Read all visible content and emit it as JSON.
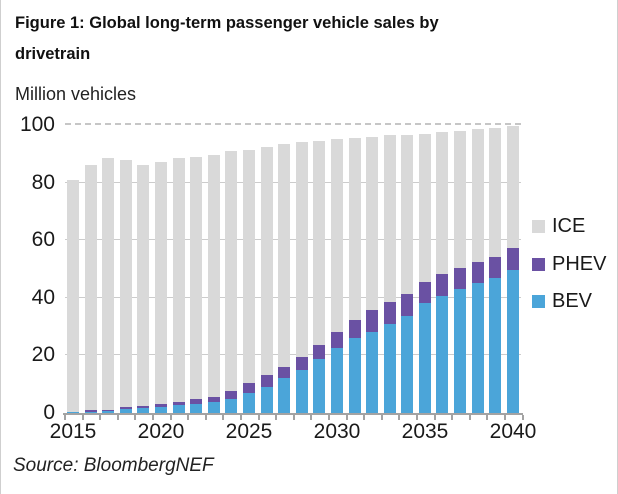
{
  "figure": {
    "title": "Figure 1: Global long-term passenger vehicle sales by drivetrain",
    "y_axis_title": "Million vehicles",
    "source": "Source: BloombergNEF"
  },
  "legend": [
    {
      "name": "ICE",
      "label": "ICE",
      "color": "#d9d9d9"
    },
    {
      "name": "PHEV",
      "label": "PHEV",
      "color": "#6a51a3"
    },
    {
      "name": "BEV",
      "label": "BEV",
      "color": "#4ba5d9"
    }
  ],
  "chart_data": {
    "type": "bar",
    "stacked": true,
    "title": "Figure 1: Global long-term passenger vehicle sales by drivetrain",
    "ylabel": "Million vehicles",
    "ylim": [
      0,
      100
    ],
    "y_ticks": [
      0,
      20,
      40,
      60,
      80,
      100
    ],
    "grid": "horizontal; line at 100 dashed, others light solid behind bars",
    "legend_position": "right",
    "categories": [
      2015,
      2016,
      2017,
      2018,
      2019,
      2020,
      2021,
      2022,
      2023,
      2024,
      2025,
      2026,
      2027,
      2028,
      2029,
      2030,
      2031,
      2032,
      2033,
      2034,
      2035,
      2036,
      2037,
      2038,
      2039,
      2040
    ],
    "x_tick_labels": [
      "2015",
      "2020",
      "2025",
      "2030",
      "2035",
      "2040"
    ],
    "x_labeled_indices": [
      0,
      5,
      10,
      15,
      20,
      25
    ],
    "series": [
      {
        "name": "BEV",
        "color": "#4ba5d9",
        "values": [
          0.2,
          0.5,
          0.8,
          1.4,
          1.7,
          2.2,
          2.7,
          3.2,
          3.9,
          5.0,
          7.0,
          9.2,
          12.2,
          15.1,
          18.6,
          22.5,
          26.0,
          28.3,
          31.0,
          33.6,
          38.2,
          40.8,
          43.2,
          45.0,
          46.8,
          49.6
        ]
      },
      {
        "name": "PHEV",
        "color": "#6a51a3",
        "values": [
          0.2,
          0.4,
          0.4,
          0.7,
          0.9,
          1.1,
          1.3,
          1.5,
          1.8,
          2.5,
          3.4,
          3.9,
          3.8,
          4.3,
          5.1,
          5.5,
          6.4,
          7.5,
          7.5,
          7.7,
          7.3,
          7.3,
          7.2,
          7.3,
          7.2,
          7.6
        ]
      },
      {
        "name": "ICE",
        "color": "#d9d9d9",
        "values": [
          80.6,
          85.1,
          87.3,
          85.9,
          83.4,
          83.7,
          84.5,
          84.3,
          83.8,
          83.5,
          81.1,
          79.4,
          77.5,
          74.6,
          70.8,
          67.0,
          63.1,
          60.2,
          58.0,
          55.2,
          51.5,
          49.4,
          47.6,
          46.2,
          45.0,
          42.3
        ]
      }
    ],
    "units": "million vehicles per year"
  }
}
